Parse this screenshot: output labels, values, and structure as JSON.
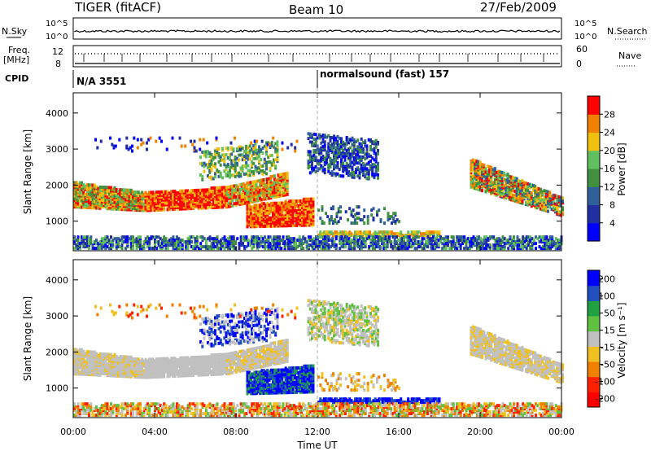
{
  "header": {
    "title": "TIGER (fitACF)",
    "beam": "Beam 10",
    "date": "27/Feb/2009"
  },
  "top_panels": {
    "nsky_label": "N.Sky",
    "nsky_ticks": [
      "10^5",
      "10^0"
    ],
    "nsearch_label": "N.Search",
    "freq_label_1": "Freq.",
    "freq_label_2": "[MHz]",
    "freq_ticks": [
      "12",
      "8"
    ],
    "nave_label": "Nave",
    "nave_ticks": [
      "60",
      "0"
    ],
    "cpid_label": "CPID",
    "cpid_1": "N/A 3551",
    "cpid_2": "normalsound (fast) 157"
  },
  "chart_data": [
    {
      "type": "heatmap",
      "name": "power",
      "ylabel": "Slant Range [km]",
      "ylim": [
        180,
        4560
      ],
      "yticks": [
        1000,
        2000,
        3000,
        4000
      ],
      "xlim": [
        0,
        24
      ],
      "colorbar_label": "Power [dB]",
      "colorbar_ticks": [
        4,
        8,
        12,
        16,
        20,
        24,
        28
      ],
      "colorscale": [
        "#0000ff",
        "#2030a0",
        "#30609a",
        "#409040",
        "#60c060",
        "#f0c010",
        "#f08000",
        "#ff0000"
      ]
    },
    {
      "type": "heatmap",
      "name": "velocity",
      "ylabel": "Slant Range [km]",
      "ylim": [
        180,
        4560
      ],
      "yticks": [
        1000,
        2000,
        3000,
        4000
      ],
      "xlim": [
        0,
        24
      ],
      "xlabel": "Time UT",
      "xticks": [
        "00:00",
        "04:00",
        "08:00",
        "12:00",
        "16:00",
        "20:00",
        "00:00"
      ],
      "colorbar_label": "Velocity [m s⁻¹]",
      "colorbar_ticks": [
        "200",
        "100",
        "50",
        "15",
        "-15",
        "-50",
        "-100",
        "-200"
      ],
      "colorscale": [
        "#0000ff",
        "#2050c0",
        "#20a040",
        "#60c040",
        "#c0c0c0",
        "#f0c020",
        "#f08000",
        "#ff2000",
        "#ff0000"
      ]
    }
  ]
}
